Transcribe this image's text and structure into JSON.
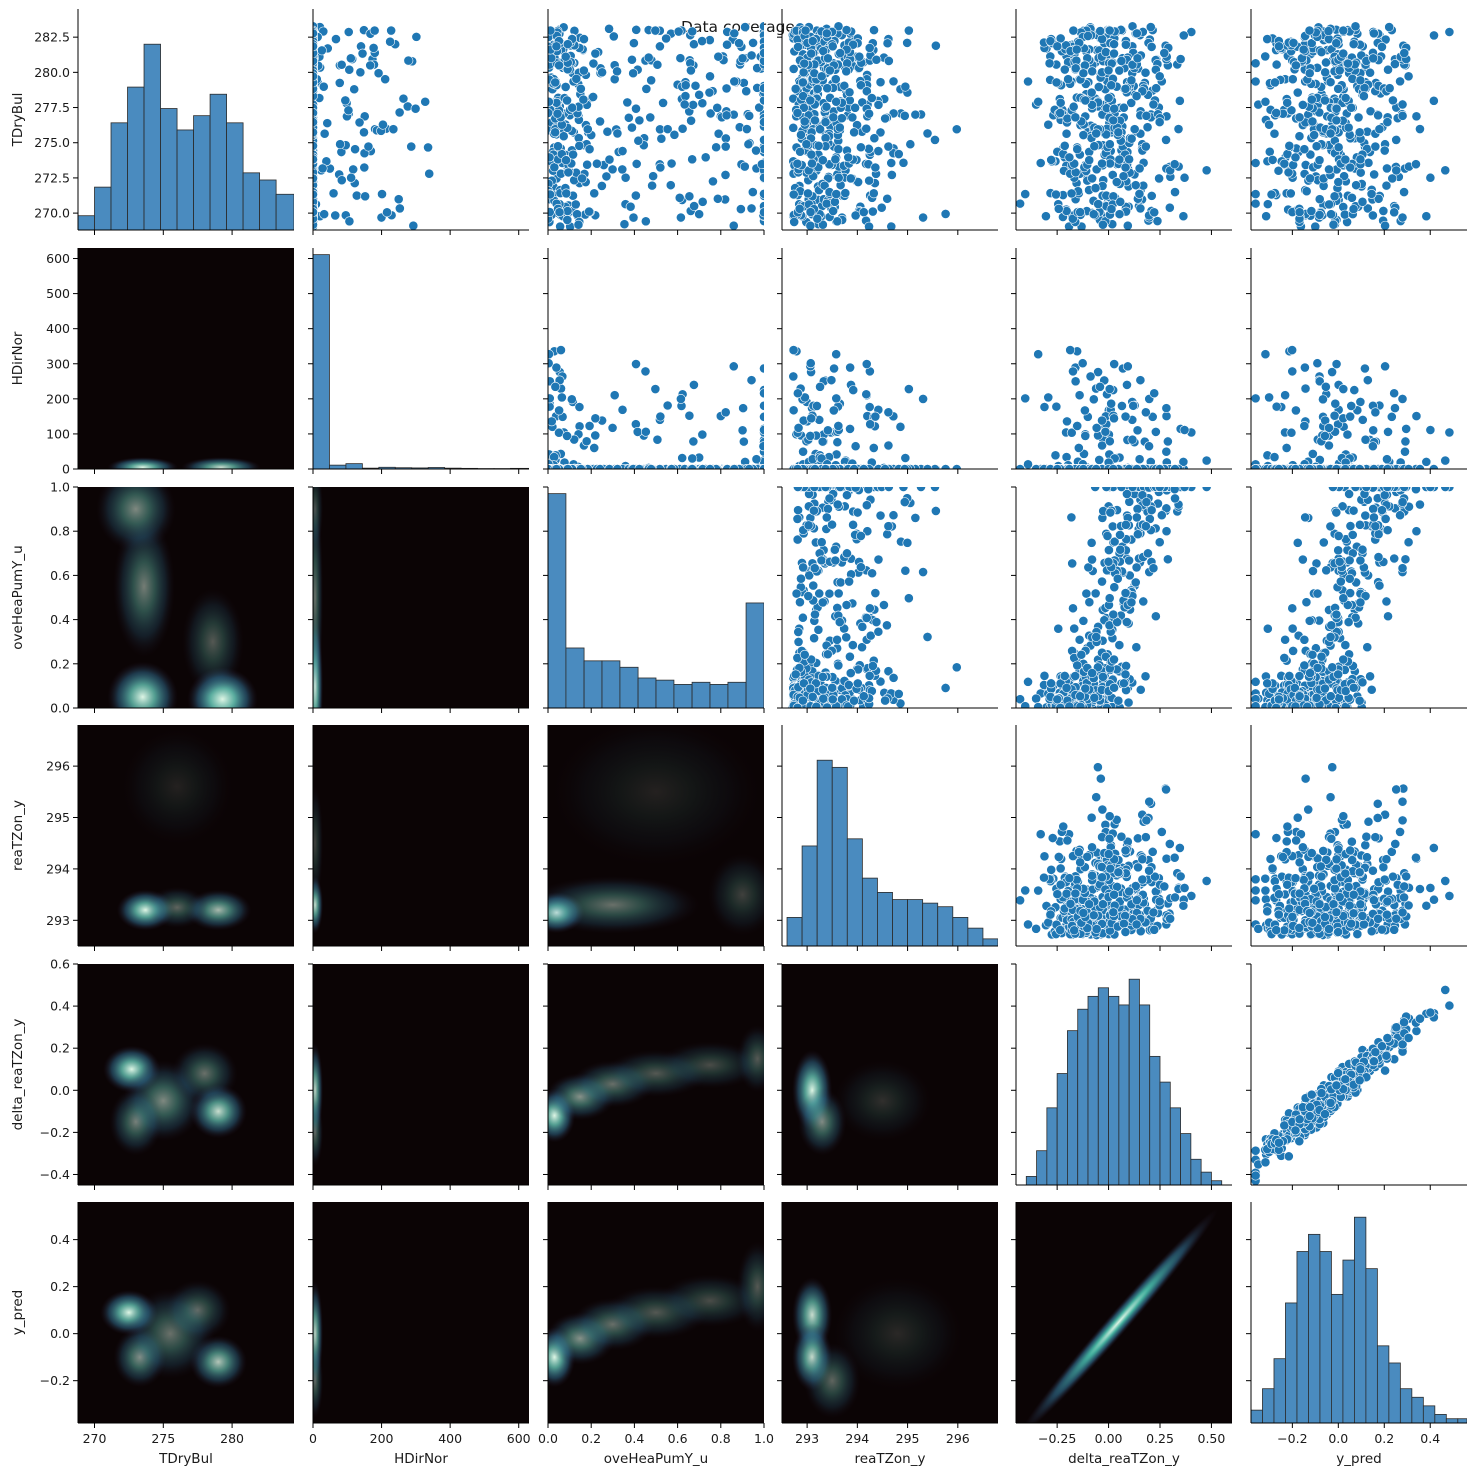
{
  "chart_data": {
    "type": "pairplot",
    "title": "Data coverage",
    "variables": [
      "TDryBul",
      "HDirNor",
      "oveHeaPumY_u",
      "reaTZon_y",
      "delta_reaTZon_y",
      "y_pred"
    ],
    "lower_triangle": "kde-density (colormap mako)",
    "upper_triangle": "scatter",
    "diagonal": "histogram",
    "colors": {
      "point": "#1f77b4",
      "hist_fill": "#4a8bbf",
      "hist_edge": "#2b2b2b",
      "kde_dark": "#0b0405",
      "kde_mid": "#357ba2",
      "kde_light": "#def5e5"
    },
    "axes": [
      {
        "name": "TDryBul",
        "range": [
          268.8,
          284.5
        ],
        "ticks": [
          270,
          275,
          280
        ],
        "tick_labels": [
          "270",
          "275",
          "280"
        ],
        "y_ticks": [
          270,
          272.5,
          275,
          277.5,
          280,
          282.5
        ],
        "y_tick_labels": [
          "270.0",
          "272.5",
          "275.0",
          "277.5",
          "280.0",
          "282.5"
        ]
      },
      {
        "name": "HDirNor",
        "range": [
          0,
          630
        ],
        "ticks": [
          0,
          200,
          400,
          600
        ],
        "tick_labels": [
          "0",
          "200",
          "400",
          "600"
        ],
        "y_ticks": [
          0,
          100,
          200,
          300,
          400,
          500,
          600
        ],
        "y_tick_labels": [
          "0",
          "100",
          "200",
          "300",
          "400",
          "500",
          "600"
        ]
      },
      {
        "name": "oveHeaPumY_u",
        "range": [
          0,
          1
        ],
        "ticks": [
          0,
          0.2,
          0.4,
          0.6,
          0.8,
          1.0
        ],
        "tick_labels": [
          "0.0",
          "0.2",
          "0.4",
          "0.6",
          "0.8",
          "1.0"
        ],
        "y_ticks": [
          0,
          0.2,
          0.4,
          0.6,
          0.8,
          1.0
        ],
        "y_tick_labels": [
          "0.0",
          "0.2",
          "0.4",
          "0.6",
          "0.8",
          "1.0"
        ]
      },
      {
        "name": "reaTZon_y",
        "range": [
          292.5,
          296.8
        ],
        "ticks": [
          293,
          294,
          295,
          296
        ],
        "tick_labels": [
          "293",
          "294",
          "295",
          "296"
        ],
        "y_ticks": [
          293,
          294,
          295,
          296
        ],
        "y_tick_labels": [
          "293",
          "294",
          "295",
          "296"
        ]
      },
      {
        "name": "delta_reaTZon_y",
        "range": [
          -0.45,
          0.6
        ],
        "ticks": [
          -0.25,
          0,
          0.25,
          0.5
        ],
        "tick_labels": [
          "−0.25",
          "0.00",
          "0.25",
          "0.50"
        ],
        "y_ticks": [
          -0.4,
          -0.2,
          0,
          0.2,
          0.4,
          0.6
        ],
        "y_tick_labels": [
          "−0.4",
          "−0.2",
          "0.0",
          "0.2",
          "0.4",
          "0.6"
        ]
      },
      {
        "name": "y_pred",
        "range": [
          -0.38,
          0.56
        ],
        "ticks": [
          -0.2,
          0,
          0.2,
          0.4
        ],
        "tick_labels": [
          "−0.2",
          "0.0",
          "0.2",
          "0.4"
        ],
        "y_ticks": [
          -0.2,
          0,
          0.2,
          0.4
        ],
        "y_tick_labels": [
          "−0.2",
          "0.0",
          "0.2",
          "0.4"
        ]
      }
    ],
    "histograms": [
      {
        "variable": "TDryBul",
        "bin_edges": [
          268.8,
          270.0,
          271.2,
          272.4,
          273.6,
          274.8,
          276.0,
          277.2,
          278.4,
          279.6,
          280.8,
          282.0,
          283.2,
          284.5
        ],
        "counts": [
          2,
          6,
          15,
          20,
          26,
          17,
          14,
          16,
          19,
          15,
          8,
          7,
          5
        ],
        "y_max": 30
      },
      {
        "variable": "HDirNor",
        "bin_edges": [
          0,
          48,
          96,
          144,
          192,
          240,
          288,
          336,
          384,
          432,
          480,
          528,
          576,
          630
        ],
        "counts": [
          1000,
          18,
          25,
          4,
          8,
          6,
          5,
          7,
          4,
          3,
          2,
          2,
          3
        ],
        "y_max": 1000
      },
      {
        "variable": "oveHeaPumY_u",
        "bin_edges": [
          0,
          0.083,
          0.167,
          0.25,
          0.333,
          0.417,
          0.5,
          0.583,
          0.667,
          0.75,
          0.833,
          0.917,
          1.0
        ],
        "counts": [
          100,
          28,
          22,
          22,
          19,
          14,
          13,
          11,
          12,
          11,
          12,
          49
        ],
        "y_max": 100
      },
      {
        "variable": "reaTZon_y",
        "bin_edges": [
          292.6,
          292.9,
          293.2,
          293.5,
          293.8,
          294.1,
          294.4,
          294.7,
          295.0,
          295.3,
          295.6,
          295.9,
          296.2,
          296.5,
          296.8
        ],
        "counts": [
          8,
          28,
          52,
          50,
          30,
          19,
          15,
          13,
          13,
          12,
          11,
          8,
          5,
          2
        ],
        "y_max": 60
      },
      {
        "variable": "delta_reaTZon_y",
        "bin_edges": [
          -0.45,
          -0.4,
          -0.35,
          -0.3,
          -0.25,
          -0.2,
          -0.15,
          -0.1,
          -0.05,
          0.0,
          0.05,
          0.1,
          0.15,
          0.2,
          0.25,
          0.3,
          0.35,
          0.4,
          0.45,
          0.5,
          0.55,
          0.6
        ],
        "counts": [
          0,
          2,
          8,
          18,
          26,
          36,
          41,
          44,
          46,
          44,
          42,
          48,
          42,
          30,
          24,
          18,
          12,
          6,
          3,
          1,
          0
        ],
        "y_max": 50
      },
      {
        "variable": "y_pred",
        "bin_edges": [
          -0.38,
          -0.33,
          -0.28,
          -0.23,
          -0.18,
          -0.13,
          -0.08,
          -0.03,
          0.02,
          0.07,
          0.12,
          0.17,
          0.22,
          0.27,
          0.32,
          0.37,
          0.42,
          0.47,
          0.52,
          0.56
        ],
        "counts": [
          3,
          8,
          15,
          28,
          40,
          44,
          40,
          30,
          38,
          48,
          36,
          18,
          14,
          8,
          6,
          4,
          2,
          1,
          1
        ],
        "y_max": 50
      }
    ],
    "kde_centers": {
      "1,0": [
        [
          273.5,
          5,
          1.6,
          18,
          1.0
        ],
        [
          279.2,
          5,
          1.8,
          18,
          0.9
        ]
      ],
      "2,0": [
        [
          273.5,
          0.05,
          1.6,
          0.1,
          1.0
        ],
        [
          279.3,
          0.04,
          1.6,
          0.09,
          1.1
        ],
        [
          273.6,
          0.55,
          1.4,
          0.2,
          0.5
        ],
        [
          273.0,
          0.9,
          1.8,
          0.12,
          0.55
        ],
        [
          278.6,
          0.3,
          1.4,
          0.15,
          0.35
        ]
      ],
      "3,0": [
        [
          273.7,
          293.2,
          1.3,
          0.25,
          1.0
        ],
        [
          279.0,
          293.2,
          1.5,
          0.25,
          0.75
        ],
        [
          276.0,
          293.25,
          1.4,
          0.25,
          0.4
        ],
        [
          276.0,
          295.6,
          2.5,
          0.7,
          0.12
        ]
      ],
      "4,0": [
        [
          272.7,
          0.1,
          1.3,
          0.07,
          1.0
        ],
        [
          279.0,
          -0.1,
          1.3,
          0.08,
          0.9
        ],
        [
          275.0,
          -0.05,
          1.8,
          0.12,
          0.55
        ],
        [
          273.0,
          -0.15,
          1.2,
          0.1,
          0.5
        ],
        [
          278.0,
          0.08,
          1.5,
          0.09,
          0.45
        ]
      ],
      "5,0": [
        [
          272.5,
          0.09,
          1.3,
          0.06,
          1.0
        ],
        [
          279.0,
          -0.12,
          1.3,
          0.07,
          0.8
        ],
        [
          273.3,
          -0.1,
          1.2,
          0.08,
          0.6
        ],
        [
          275.5,
          0.0,
          2.0,
          0.12,
          0.45
        ],
        [
          277.5,
          0.1,
          1.5,
          0.08,
          0.4
        ]
      ],
      "2,1": [
        [
          6,
          0.1,
          5,
          0.2,
          1.0
        ],
        [
          6,
          0.5,
          5,
          0.3,
          0.45
        ],
        [
          6,
          0.9,
          5,
          0.12,
          0.3
        ]
      ],
      "3,1": [
        [
          6,
          293.3,
          5,
          0.35,
          0.9
        ],
        [
          6,
          294.5,
          5,
          0.7,
          0.25
        ]
      ],
      "4,1": [
        [
          6,
          0.0,
          5,
          0.14,
          0.85
        ],
        [
          6,
          -0.2,
          5,
          0.1,
          0.4
        ]
      ],
      "5,1": [
        [
          6,
          0.0,
          5,
          0.14,
          0.85
        ],
        [
          6,
          -0.2,
          5,
          0.1,
          0.4
        ]
      ],
      "3,2": [
        [
          0.04,
          293.15,
          0.08,
          0.25,
          1.0
        ],
        [
          0.3,
          293.3,
          0.25,
          0.35,
          0.45
        ],
        [
          0.5,
          295.5,
          0.3,
          0.9,
          0.12
        ],
        [
          0.9,
          293.5,
          0.1,
          0.5,
          0.25
        ]
      ],
      "4,2": [
        [
          0.03,
          -0.12,
          0.06,
          0.08,
          1.0
        ],
        [
          0.15,
          -0.03,
          0.1,
          0.07,
          0.6
        ],
        [
          0.3,
          0.03,
          0.12,
          0.07,
          0.45
        ],
        [
          0.5,
          0.08,
          0.15,
          0.07,
          0.35
        ],
        [
          0.75,
          0.12,
          0.15,
          0.07,
          0.3
        ],
        [
          0.97,
          0.15,
          0.06,
          0.1,
          0.35
        ]
      ],
      "5,2": [
        [
          0.03,
          -0.1,
          0.06,
          0.08,
          1.0
        ],
        [
          0.15,
          -0.02,
          0.1,
          0.07,
          0.6
        ],
        [
          0.3,
          0.04,
          0.12,
          0.07,
          0.45
        ],
        [
          0.5,
          0.09,
          0.15,
          0.07,
          0.35
        ],
        [
          0.75,
          0.14,
          0.15,
          0.07,
          0.3
        ],
        [
          0.97,
          0.2,
          0.06,
          0.12,
          0.35
        ]
      ],
      "4,3": [
        [
          293.1,
          0.0,
          0.25,
          0.12,
          1.0
        ],
        [
          293.3,
          -0.15,
          0.3,
          0.1,
          0.55
        ],
        [
          294.5,
          -0.05,
          0.6,
          0.12,
          0.18
        ]
      ],
      "5,3": [
        [
          293.1,
          0.08,
          0.25,
          0.1,
          0.9
        ],
        [
          293.1,
          -0.1,
          0.25,
          0.09,
          0.9
        ],
        [
          293.5,
          -0.2,
          0.35,
          0.1,
          0.4
        ],
        [
          294.8,
          0.0,
          0.8,
          0.15,
          0.15
        ]
      ]
    },
    "kde_diagonal_correlated": {
      "row": 5,
      "col": 4,
      "slope": 1.0,
      "intercept": 0.0,
      "spread_along": 0.18,
      "spread_across": 0.025,
      "peak_x": 0.05
    }
  }
}
